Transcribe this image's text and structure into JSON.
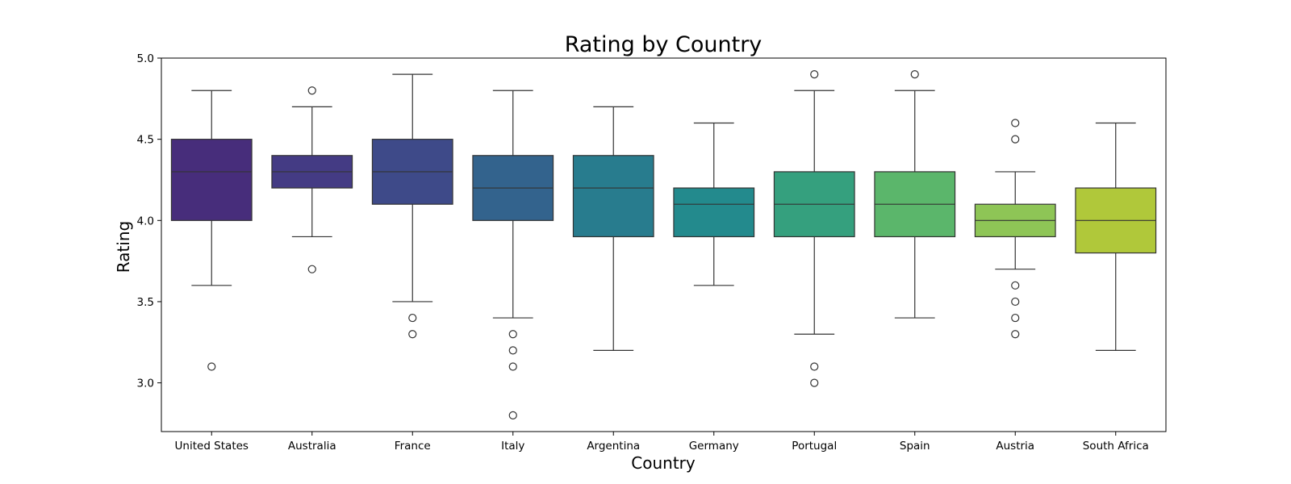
{
  "chart_data": {
    "type": "box",
    "title": "Rating by Country",
    "xlabel": "Country",
    "ylabel": "Rating",
    "ylim": [
      2.7,
      5.0
    ],
    "yticks": [
      "3.0",
      "3.5",
      "4.0",
      "4.5",
      "5.0"
    ],
    "grid": false,
    "categories": [
      "United States",
      "Australia",
      "France",
      "Italy",
      "Argentina",
      "Germany",
      "Portugal",
      "Spain",
      "Austria",
      "South Africa"
    ],
    "colors": [
      "#472d7b",
      "#443b84",
      "#3e4a89",
      "#33638d",
      "#287c8e",
      "#238a8d",
      "#35a07e",
      "#5bb66b",
      "#8ec556",
      "#b0c83a"
    ],
    "boxes": [
      {
        "name": "United States",
        "whisker_low": 3.6,
        "q1": 4.0,
        "median": 4.3,
        "q3": 4.5,
        "whisker_high": 4.8,
        "outliers": [
          3.1
        ]
      },
      {
        "name": "Australia",
        "whisker_low": 3.9,
        "q1": 4.2,
        "median": 4.3,
        "q3": 4.4,
        "whisker_high": 4.7,
        "outliers": [
          4.8,
          3.7
        ]
      },
      {
        "name": "France",
        "whisker_low": 3.5,
        "q1": 4.1,
        "median": 4.3,
        "q3": 4.5,
        "whisker_high": 4.9,
        "outliers": [
          3.4,
          3.3
        ]
      },
      {
        "name": "Italy",
        "whisker_low": 3.4,
        "q1": 4.0,
        "median": 4.2,
        "q3": 4.4,
        "whisker_high": 4.8,
        "outliers": [
          3.3,
          3.2,
          3.1,
          2.8
        ]
      },
      {
        "name": "Argentina",
        "whisker_low": 3.2,
        "q1": 3.9,
        "median": 4.2,
        "q3": 4.4,
        "whisker_high": 4.7,
        "outliers": []
      },
      {
        "name": "Germany",
        "whisker_low": 3.6,
        "q1": 3.9,
        "median": 4.1,
        "q3": 4.2,
        "whisker_high": 4.6,
        "outliers": []
      },
      {
        "name": "Portugal",
        "whisker_low": 3.3,
        "q1": 3.9,
        "median": 4.1,
        "q3": 4.3,
        "whisker_high": 4.8,
        "outliers": [
          4.9,
          3.1,
          3.0
        ]
      },
      {
        "name": "Spain",
        "whisker_low": 3.4,
        "q1": 3.9,
        "median": 4.1,
        "q3": 4.3,
        "whisker_high": 4.8,
        "outliers": [
          4.9
        ]
      },
      {
        "name": "Austria",
        "whisker_low": 3.7,
        "q1": 3.9,
        "median": 4.0,
        "q3": 4.1,
        "whisker_high": 4.3,
        "outliers": [
          4.6,
          4.5,
          3.6,
          3.5,
          3.4,
          3.3
        ]
      },
      {
        "name": "South Africa",
        "whisker_low": 3.2,
        "q1": 3.8,
        "median": 4.0,
        "q3": 4.2,
        "whisker_high": 4.6,
        "outliers": []
      }
    ]
  }
}
